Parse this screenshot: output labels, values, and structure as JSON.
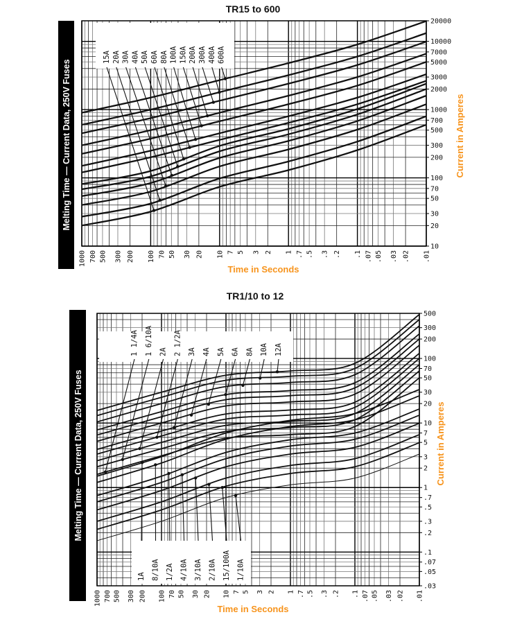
{
  "colors": {
    "axis_title": "#f7941d",
    "sidebar": "#000000",
    "curve": "#111111",
    "grid": "#333333"
  },
  "chart_data": [
    {
      "type": "line",
      "title": "TR15 to 600",
      "sidebar_label": "Melting Time — Current Data, 250V Fuses",
      "xlabel": "Time in Seconds",
      "ylabel": "Current in Amperes",
      "xscale": "log",
      "yscale": "log",
      "xlim": [
        1000,
        0.01
      ],
      "ylim": [
        10,
        20000
      ],
      "grid": true,
      "xticks": [
        "1000",
        "700",
        "500",
        "300",
        "200",
        "100",
        "70",
        "50",
        "30",
        "20",
        "10",
        "7",
        "5",
        "3",
        "2",
        "1",
        ".7",
        ".5",
        ".3",
        ".2",
        ".1",
        ".07",
        ".05",
        ".03",
        ".02",
        ".01"
      ],
      "yticks": [
        "20000",
        "10000",
        "7000",
        "5000",
        "3000",
        "2000",
        "1000",
        "700",
        "500",
        "300",
        "200",
        "100",
        "70",
        "50",
        "30",
        "20",
        "10"
      ],
      "x": [
        1000,
        100,
        10,
        1,
        0.1,
        0.01
      ],
      "series": [
        {
          "name": "15A",
          "values": [
            20,
            32,
            74,
            130,
            255,
            600
          ]
        },
        {
          "name": "20A",
          "values": [
            27,
            42,
            98,
            174,
            340,
            800
          ]
        },
        {
          "name": "30A",
          "values": [
            40,
            63,
            147,
            261,
            510,
            1200
          ]
        },
        {
          "name": "40A",
          "values": [
            54,
            84,
            196,
            348,
            680,
            1600
          ]
        },
        {
          "name": "50A",
          "values": [
            68,
            105,
            245,
            435,
            850,
            2000
          ]
        },
        {
          "name": "60A",
          "values": [
            81,
            126,
            294,
            522,
            1020,
            2400
          ]
        },
        {
          "name": "80A",
          "values": [
            120,
            200,
            360,
            640,
            1200,
            2640
          ]
        },
        {
          "name": "100A",
          "values": [
            150,
            250,
            450,
            800,
            1500,
            3300
          ]
        },
        {
          "name": "150A",
          "values": [
            225,
            375,
            675,
            1200,
            2250,
            5000
          ]
        },
        {
          "name": "200A",
          "values": [
            300,
            500,
            900,
            1600,
            3000,
            6600
          ]
        },
        {
          "name": "300A",
          "values": [
            450,
            750,
            1350,
            2400,
            4500,
            9900
          ]
        },
        {
          "name": "400A",
          "values": [
            600,
            1000,
            1800,
            3200,
            6000,
            13200
          ]
        },
        {
          "name": "600A",
          "values": [
            900,
            1500,
            2700,
            4800,
            9000,
            19800
          ]
        }
      ]
    },
    {
      "type": "line",
      "title": "TR1/10 to 12",
      "sidebar_label": "Melting Time — Current Data, 250V Fuses",
      "xlabel": "Time in Seconds",
      "ylabel": "Current in Amperes",
      "xscale": "log",
      "yscale": "log",
      "xlim": [
        1000,
        0.01
      ],
      "ylim": [
        0.03,
        500
      ],
      "grid": true,
      "xticks": [
        "1000",
        "700",
        "500",
        "300",
        "200",
        "100",
        "70",
        "50",
        "30",
        "20",
        "10",
        "7",
        "5",
        "3",
        "2",
        "1",
        ".7",
        ".5",
        ".3",
        ".2",
        ".1",
        ".07",
        ".05",
        ".03",
        ".02",
        ".01"
      ],
      "yticks": [
        "500",
        "300",
        "200",
        "100",
        "70",
        "50",
        "30",
        "20",
        "10",
        "7",
        "5",
        "3",
        "2",
        "1",
        ".7",
        ".5",
        ".3",
        ".2",
        ".1",
        ".07",
        ".05",
        ".03"
      ],
      "x": [
        1000,
        100,
        10,
        1,
        0.1,
        0.01
      ],
      "series": [
        {
          "name": "1A",
          "values": [
            1.5,
            3,
            7,
            11,
            14,
            33
          ]
        },
        {
          "name": "8/10A",
          "values": [
            1.2,
            2.4,
            5.6,
            8.8,
            11.2,
            26.4
          ]
        },
        {
          "name": "1/2A",
          "values": [
            0.75,
            1.5,
            3.5,
            5.5,
            7,
            16.5
          ]
        },
        {
          "name": "4/10A",
          "values": [
            0.6,
            1.2,
            2.8,
            4.4,
            5.6,
            13.2
          ]
        },
        {
          "name": "3/10A",
          "values": [
            0.45,
            0.9,
            2.1,
            3.3,
            4.2,
            9.9
          ]
        },
        {
          "name": "2/10A",
          "values": [
            0.3,
            0.6,
            1.4,
            2.2,
            2.8,
            6.6
          ]
        },
        {
          "name": "15/100A",
          "values": [
            0.225,
            0.45,
            1.05,
            1.65,
            2.1,
            4.95
          ]
        },
        {
          "name": "1/10A",
          "values": [
            0.15,
            0.3,
            0.7,
            1.1,
            1.4,
            3.3
          ]
        },
        {
          "name": "1 1/4A",
          "values": [
            1.6,
            3.1,
            5.8,
            6.6,
            8.8,
            50
          ]
        },
        {
          "name": "1 6/10A",
          "values": [
            2.1,
            4,
            7.4,
            8.5,
            11.2,
            64
          ]
        },
        {
          "name": "2A",
          "values": [
            2.6,
            5,
            9.2,
            10.6,
            14,
            80
          ]
        },
        {
          "name": "2 1/2A",
          "values": [
            3.3,
            6.3,
            11.5,
            13.3,
            17.5,
            100
          ]
        },
        {
          "name": "3A",
          "values": [
            3.9,
            7.5,
            13.8,
            15.9,
            21,
            120
          ]
        },
        {
          "name": "4A",
          "values": [
            5.2,
            10,
            18.4,
            21.2,
            28,
            160
          ]
        },
        {
          "name": "5A",
          "values": [
            6.5,
            12.5,
            23,
            26.5,
            35,
            200
          ]
        },
        {
          "name": "6A",
          "values": [
            7.8,
            15,
            27.6,
            31.8,
            42,
            240
          ]
        },
        {
          "name": "8A",
          "values": [
            10.4,
            20,
            36.8,
            42.4,
            56,
            320
          ]
        },
        {
          "name": "10A",
          "values": [
            13,
            25,
            46,
            53,
            70,
            400
          ]
        },
        {
          "name": "12A",
          "values": [
            15.6,
            30,
            55,
            64,
            84,
            480
          ]
        }
      ]
    }
  ]
}
